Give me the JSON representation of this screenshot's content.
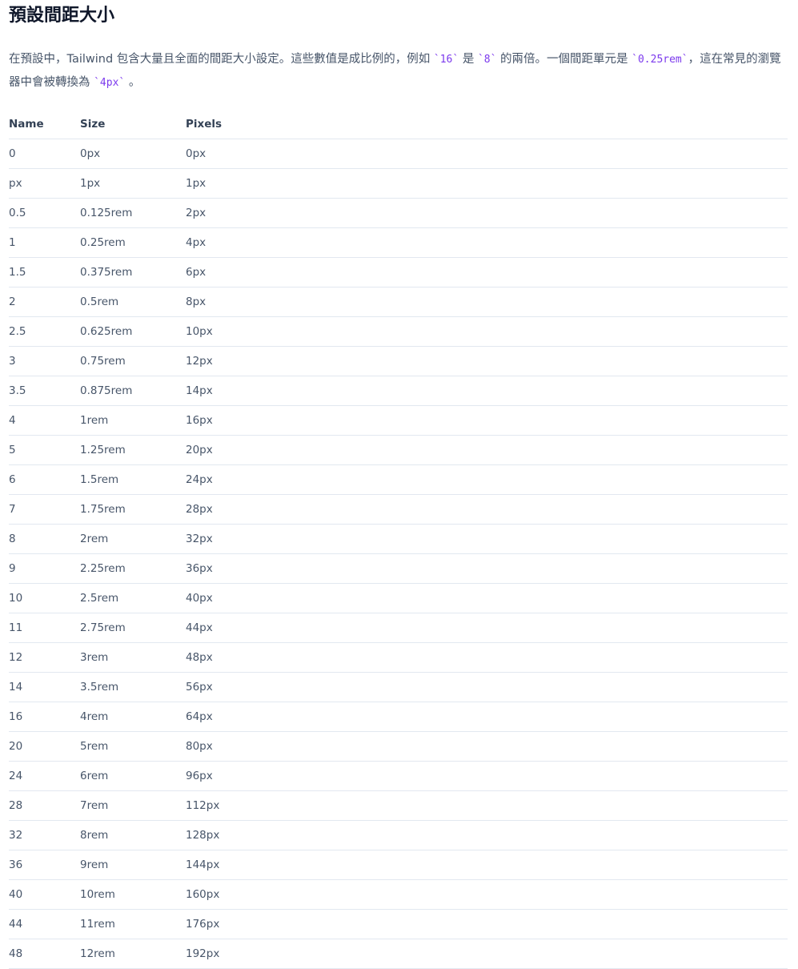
{
  "header": {
    "title": "預設間距大小"
  },
  "intro": [
    "在預設中，Tailwind 包含大量且全面的間距大小設定。這些數值是成比例的，例如 ",
    "`16`",
    " 是 ",
    "`8`",
    " 的兩倍。一個間距單元是 ",
    "`0.25rem`",
    "，這在常見的瀏覽器中會被轉換為 ",
    "`4px`",
    " 。"
  ],
  "table": {
    "columns": [
      "Name",
      "Size",
      "Pixels"
    ],
    "rows": [
      [
        "0",
        "0px",
        "0px"
      ],
      [
        "px",
        "1px",
        "1px"
      ],
      [
        "0.5",
        "0.125rem",
        "2px"
      ],
      [
        "1",
        "0.25rem",
        "4px"
      ],
      [
        "1.5",
        "0.375rem",
        "6px"
      ],
      [
        "2",
        "0.5rem",
        "8px"
      ],
      [
        "2.5",
        "0.625rem",
        "10px"
      ],
      [
        "3",
        "0.75rem",
        "12px"
      ],
      [
        "3.5",
        "0.875rem",
        "14px"
      ],
      [
        "4",
        "1rem",
        "16px"
      ],
      [
        "5",
        "1.25rem",
        "20px"
      ],
      [
        "6",
        "1.5rem",
        "24px"
      ],
      [
        "7",
        "1.75rem",
        "28px"
      ],
      [
        "8",
        "2rem",
        "32px"
      ],
      [
        "9",
        "2.25rem",
        "36px"
      ],
      [
        "10",
        "2.5rem",
        "40px"
      ],
      [
        "11",
        "2.75rem",
        "44px"
      ],
      [
        "12",
        "3rem",
        "48px"
      ],
      [
        "14",
        "3.5rem",
        "56px"
      ],
      [
        "16",
        "4rem",
        "64px"
      ],
      [
        "20",
        "5rem",
        "80px"
      ],
      [
        "24",
        "6rem",
        "96px"
      ],
      [
        "28",
        "7rem",
        "112px"
      ],
      [
        "32",
        "8rem",
        "128px"
      ],
      [
        "36",
        "9rem",
        "144px"
      ],
      [
        "40",
        "10rem",
        "160px"
      ],
      [
        "44",
        "11rem",
        "176px"
      ],
      [
        "48",
        "12rem",
        "192px"
      ]
    ]
  }
}
